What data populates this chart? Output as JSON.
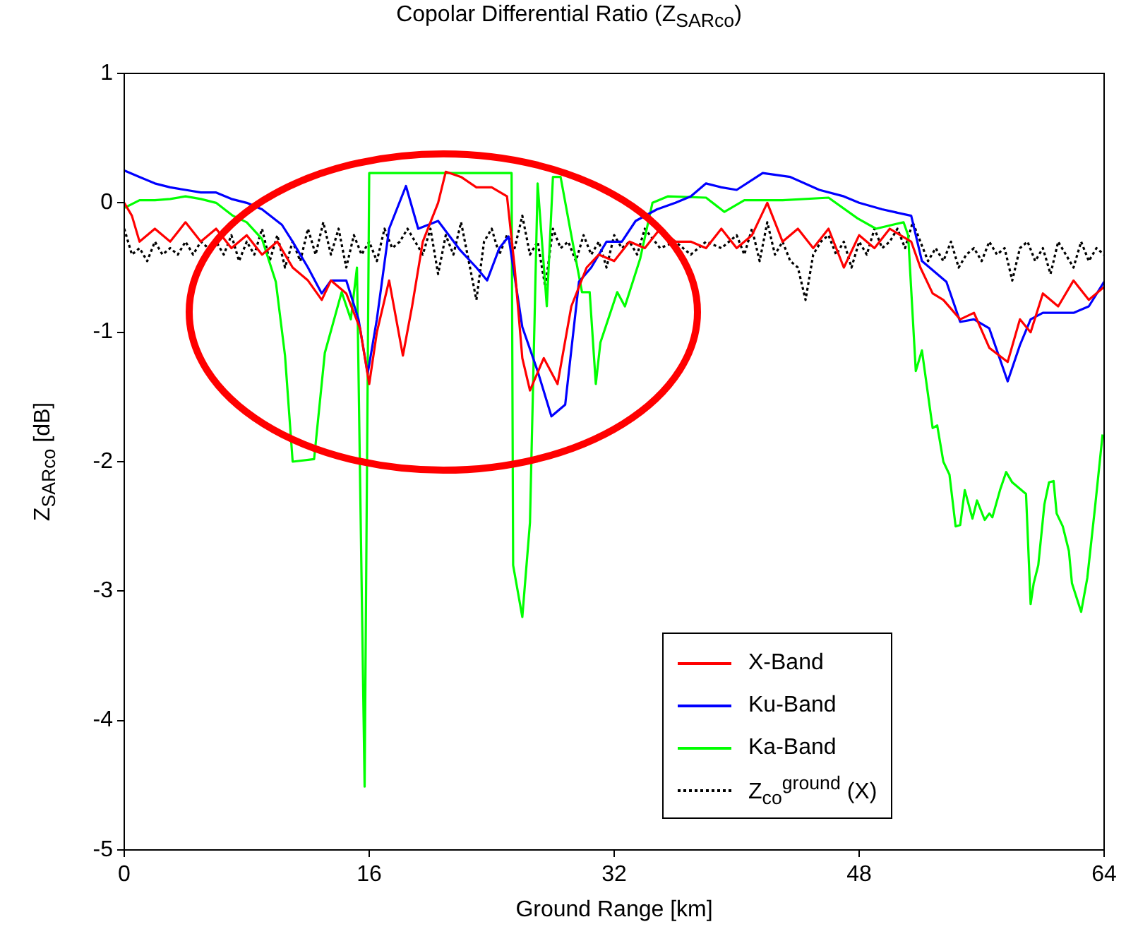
{
  "chart_data": {
    "type": "line",
    "title": "Copolar Differential Ratio (Z$_{SARco}$)",
    "xlabel": "Ground Range [km]",
    "ylabel": "Z$_{SARco}$ [dB]",
    "xlim": [
      0,
      64
    ],
    "xticks": [
      0,
      16,
      32,
      48,
      64
    ],
    "ylim": [
      -5,
      1
    ],
    "yticks": [
      -5,
      -4,
      -3,
      -2,
      -1,
      0,
      1
    ],
    "grid": false,
    "legend": "bottom right",
    "series": [
      {
        "name": "X-Band",
        "color": "#ff0000",
        "x": [
          0,
          0.5,
          1,
          2,
          3,
          4,
          5,
          6,
          7,
          8,
          9,
          10,
          11,
          12,
          12.9,
          13.5,
          14.5,
          15.4,
          16,
          16.5,
          17.3,
          18.2,
          18.8,
          19.5,
          20.5,
          21,
          22,
          23,
          24,
          25,
          25.5,
          26,
          26.5,
          27.4,
          28.3,
          29.2,
          30.2,
          31,
          32,
          33,
          34,
          35,
          36,
          37,
          38,
          39,
          40,
          41,
          42,
          43,
          44,
          45,
          46,
          47,
          48,
          49,
          50,
          51.4,
          52,
          52.8,
          53.5,
          54.6,
          55.5,
          56.5,
          57.7,
          58.5,
          59.2,
          60,
          61,
          62,
          63,
          64
        ],
        "values": [
          0,
          -0.1,
          -0.3,
          -0.2,
          -0.3,
          -0.15,
          -0.3,
          -0.2,
          -0.35,
          -0.25,
          -0.4,
          -0.3,
          -0.5,
          -0.6,
          -0.75,
          -0.6,
          -0.7,
          -0.97,
          -1.4,
          -1.0,
          -0.6,
          -1.18,
          -0.8,
          -0.3,
          0.0,
          0.24,
          0.2,
          0.12,
          0.12,
          0.05,
          -0.5,
          -1.2,
          -1.45,
          -1.2,
          -1.4,
          -0.8,
          -0.5,
          -0.4,
          -0.45,
          -0.3,
          -0.35,
          -0.2,
          -0.3,
          -0.3,
          -0.35,
          -0.2,
          -0.35,
          -0.25,
          0.0,
          -0.3,
          -0.2,
          -0.35,
          -0.2,
          -0.5,
          -0.25,
          -0.35,
          -0.2,
          -0.3,
          -0.5,
          -0.7,
          -0.75,
          -0.9,
          -0.85,
          -1.12,
          -1.23,
          -0.9,
          -1.0,
          -0.7,
          -0.8,
          -0.6,
          -0.75,
          -0.65
        ]
      },
      {
        "name": "Ku-Band",
        "color": "#0000ff",
        "x": [
          0,
          1,
          2,
          3,
          4,
          5,
          6,
          7,
          8,
          9,
          10.3,
          11,
          12,
          12.9,
          13.5,
          14.5,
          15.3,
          15.9,
          16.5,
          17.3,
          18.4,
          19.2,
          20.5,
          21.9,
          23,
          23.7,
          24.5,
          25.1,
          26,
          27,
          27.9,
          28.8,
          29.7,
          30.5,
          31.5,
          32.5,
          33.4,
          34.8,
          36,
          37,
          38,
          39,
          40,
          41.7,
          43.5,
          45.4,
          47,
          48,
          49.5,
          51.4,
          52.1,
          53.7,
          54.6,
          55.5,
          56.5,
          57.7,
          58.5,
          59.2,
          60,
          61,
          62,
          63,
          64
        ],
        "values": [
          0.25,
          0.2,
          0.15,
          0.12,
          0.1,
          0.08,
          0.08,
          0.03,
          0.0,
          -0.05,
          -0.17,
          -0.3,
          -0.5,
          -0.7,
          -0.6,
          -0.6,
          -0.9,
          -1.32,
          -0.9,
          -0.2,
          0.13,
          -0.2,
          -0.14,
          -0.36,
          -0.5,
          -0.6,
          -0.35,
          -0.26,
          -0.96,
          -1.3,
          -1.65,
          -1.56,
          -0.61,
          -0.5,
          -0.3,
          -0.3,
          -0.14,
          -0.05,
          0.0,
          0.05,
          0.15,
          0.12,
          0.1,
          0.23,
          0.2,
          0.1,
          0.05,
          0.0,
          -0.05,
          -0.1,
          -0.45,
          -0.61,
          -0.92,
          -0.9,
          -0.97,
          -1.38,
          -1.1,
          -0.9,
          -0.85,
          -0.85,
          -0.85,
          -0.8,
          -0.61
        ]
      },
      {
        "name": "Ka-Band",
        "color": "#00ff00",
        "x": [
          0,
          1,
          2,
          3,
          4,
          5,
          6,
          7.1,
          8,
          9,
          9.9,
          10.5,
          11,
          12.4,
          13.1,
          14.2,
          14.8,
          15.2,
          15.7,
          16,
          20,
          25.3,
          25.4,
          26,
          26.5,
          27,
          27.6,
          28,
          28.5,
          29.2,
          29.9,
          30.4,
          30.8,
          31.1,
          32.2,
          32.7,
          33.7,
          34.5,
          35.5,
          38,
          39.2,
          40.5,
          43,
          46,
          47.9,
          49.1,
          50.9,
          51.2,
          51.7,
          52.1,
          52.8,
          53.1,
          53.5,
          53.9,
          54.3,
          54.6,
          54.9,
          55.4,
          55.7,
          56.2,
          56.5,
          56.7,
          57.2,
          57.6,
          58,
          58.9,
          59.2,
          59.4,
          59.7,
          60.1,
          60.4,
          60.7,
          60.9,
          61.3,
          61.7,
          61.9,
          62.5,
          62.9,
          63.4,
          63.9
        ],
        "values": [
          -0.04,
          0.02,
          0.02,
          0.03,
          0.05,
          0.03,
          0.0,
          -0.1,
          -0.15,
          -0.28,
          -0.61,
          -1.18,
          -2.0,
          -1.98,
          -1.16,
          -0.69,
          -0.9,
          -0.5,
          -4.51,
          0.23,
          0.23,
          0.23,
          -2.8,
          -3.2,
          -2.47,
          0.15,
          -0.8,
          0.2,
          0.2,
          -0.25,
          -0.69,
          -0.69,
          -1.4,
          -1.08,
          -0.69,
          -0.8,
          -0.43,
          0.0,
          0.05,
          0.04,
          -0.07,
          0.02,
          0.02,
          0.04,
          -0.12,
          -0.2,
          -0.15,
          -0.25,
          -1.3,
          -1.14,
          -1.74,
          -1.72,
          -2.0,
          -2.1,
          -2.5,
          -2.49,
          -2.22,
          -2.44,
          -2.3,
          -2.45,
          -2.4,
          -2.43,
          -2.22,
          -2.08,
          -2.16,
          -2.25,
          -3.1,
          -2.94,
          -2.8,
          -2.33,
          -2.16,
          -2.15,
          -2.4,
          -2.5,
          -2.69,
          -2.94,
          -3.16,
          -2.9,
          -2.36,
          -1.79
        ]
      },
      {
        "name": "Z$_{co}$$^{ground}$ (X)",
        "color": "#000000",
        "line_style": "dotted",
        "x": [
          0,
          0.5,
          1,
          1.5,
          2,
          2.5,
          3,
          3.5,
          4,
          4.5,
          5,
          5.5,
          6,
          6.5,
          7,
          7.5,
          8,
          8.5,
          9,
          9.5,
          10,
          10.5,
          11,
          11.5,
          12,
          12.5,
          13,
          13.5,
          14,
          14.5,
          15,
          15.5,
          16,
          16.5,
          17,
          17.5,
          18,
          18.5,
          19,
          19.5,
          20,
          20.5,
          21,
          21.5,
          22,
          22.5,
          23,
          23.5,
          24,
          24.5,
          25,
          25.5,
          26,
          26.5,
          27,
          27.5,
          28,
          28.5,
          29,
          29.5,
          30,
          30.5,
          31,
          31.5,
          32,
          32.5,
          33,
          33.5,
          34,
          35,
          36,
          37,
          38,
          39,
          40,
          40.5,
          41,
          41.5,
          42,
          42.5,
          43,
          43.5,
          44,
          44.5,
          45,
          45.5,
          46,
          46.5,
          47,
          47.5,
          48,
          48.5,
          49,
          49.5,
          50,
          50.5,
          51,
          51.5,
          52,
          52.5,
          53,
          53.5,
          54,
          54.5,
          55,
          55.5,
          56,
          56.5,
          57,
          57.5,
          58,
          58.5,
          59,
          59.5,
          60,
          60.5,
          61,
          61.5,
          62,
          62.5,
          63,
          63.5,
          64
        ],
        "values": [
          -0.2,
          -0.4,
          -0.35,
          -0.45,
          -0.3,
          -0.4,
          -0.35,
          -0.4,
          -0.3,
          -0.4,
          -0.3,
          -0.35,
          -0.3,
          -0.4,
          -0.25,
          -0.45,
          -0.3,
          -0.4,
          -0.2,
          -0.45,
          -0.25,
          -0.5,
          -0.3,
          -0.45,
          -0.2,
          -0.4,
          -0.15,
          -0.4,
          -0.2,
          -0.5,
          -0.25,
          -0.4,
          -0.3,
          -0.45,
          -0.2,
          -0.35,
          -0.3,
          -0.2,
          -0.3,
          -0.4,
          -0.2,
          -0.55,
          -0.25,
          -0.4,
          -0.15,
          -0.45,
          -0.75,
          -0.3,
          -0.2,
          -0.4,
          -0.25,
          -0.35,
          -0.1,
          -0.4,
          -0.3,
          -0.65,
          -0.2,
          -0.35,
          -0.3,
          -0.45,
          -0.25,
          -0.4,
          -0.3,
          -0.5,
          -0.25,
          -0.35,
          -0.3,
          -0.4,
          -0.2,
          -0.35,
          -0.3,
          -0.4,
          -0.3,
          -0.35,
          -0.25,
          -0.4,
          -0.2,
          -0.45,
          -0.15,
          -0.4,
          -0.3,
          -0.45,
          -0.5,
          -0.75,
          -0.4,
          -0.3,
          -0.25,
          -0.4,
          -0.3,
          -0.5,
          -0.3,
          -0.4,
          -0.2,
          -0.35,
          -0.3,
          -0.2,
          -0.35,
          -0.15,
          -0.3,
          -0.45,
          -0.35,
          -0.45,
          -0.3,
          -0.5,
          -0.4,
          -0.35,
          -0.45,
          -0.3,
          -0.4,
          -0.35,
          -0.6,
          -0.35,
          -0.3,
          -0.45,
          -0.35,
          -0.55,
          -0.3,
          -0.4,
          -0.5,
          -0.3,
          -0.45,
          -0.35,
          -0.4
        ]
      }
    ]
  }
}
